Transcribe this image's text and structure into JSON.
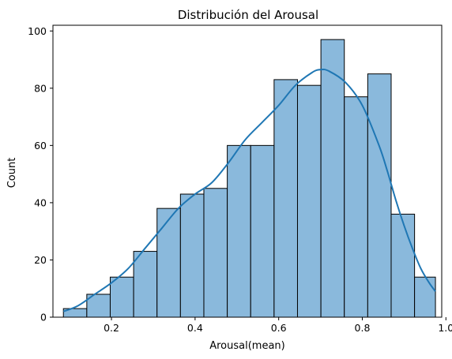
{
  "chart_data": {
    "type": "bar",
    "subtype": "histogram_with_kde",
    "title": "Distribución del Arousal",
    "xlabel": "Arousal(mean)",
    "ylabel": "Count",
    "xlim": [
      0.06,
      0.99
    ],
    "ylim": [
      0,
      102
    ],
    "xticks": [
      0.2,
      0.4,
      0.6,
      0.8,
      1.0
    ],
    "xtick_labels": [
      "0.2",
      "0.4",
      "0.6",
      "0.8",
      "1.0"
    ],
    "yticks": [
      0,
      20,
      40,
      60,
      80,
      100
    ],
    "ytick_labels": [
      "0",
      "20",
      "40",
      "60",
      "80",
      "100"
    ],
    "grid": false,
    "bar_color": "#8ab9dc",
    "bar_edge_color": "#000000",
    "kde_color": "#1f77b4",
    "bins": [
      {
        "x0": 0.085,
        "x1": 0.141,
        "count": 3
      },
      {
        "x0": 0.141,
        "x1": 0.197,
        "count": 8
      },
      {
        "x0": 0.197,
        "x1": 0.253,
        "count": 14
      },
      {
        "x0": 0.253,
        "x1": 0.309,
        "count": 23
      },
      {
        "x0": 0.309,
        "x1": 0.365,
        "count": 38
      },
      {
        "x0": 0.365,
        "x1": 0.421,
        "count": 43
      },
      {
        "x0": 0.421,
        "x1": 0.477,
        "count": 45
      },
      {
        "x0": 0.477,
        "x1": 0.533,
        "count": 60
      },
      {
        "x0": 0.533,
        "x1": 0.589,
        "count": 60
      },
      {
        "x0": 0.589,
        "x1": 0.645,
        "count": 83
      },
      {
        "x0": 0.645,
        "x1": 0.701,
        "count": 81
      },
      {
        "x0": 0.701,
        "x1": 0.757,
        "count": 97
      },
      {
        "x0": 0.757,
        "x1": 0.813,
        "count": 77
      },
      {
        "x0": 0.813,
        "x1": 0.869,
        "count": 85
      },
      {
        "x0": 0.869,
        "x1": 0.925,
        "count": 36
      },
      {
        "x0": 0.925,
        "x1": 0.975,
        "count": 14
      }
    ],
    "kde": {
      "x": [
        0.085,
        0.12,
        0.16,
        0.2,
        0.24,
        0.28,
        0.32,
        0.36,
        0.4,
        0.44,
        0.48,
        0.52,
        0.56,
        0.6,
        0.64,
        0.68,
        0.7,
        0.72,
        0.76,
        0.8,
        0.84,
        0.86,
        0.88,
        0.9,
        0.92,
        0.94,
        0.96,
        0.975
      ],
      "y": [
        2,
        4,
        8,
        12,
        17,
        24,
        31,
        38,
        43,
        47,
        54,
        62,
        68,
        74,
        81,
        85.5,
        86.5,
        86,
        82,
        74,
        60,
        51,
        41,
        32,
        24,
        17,
        12,
        9
      ]
    }
  }
}
